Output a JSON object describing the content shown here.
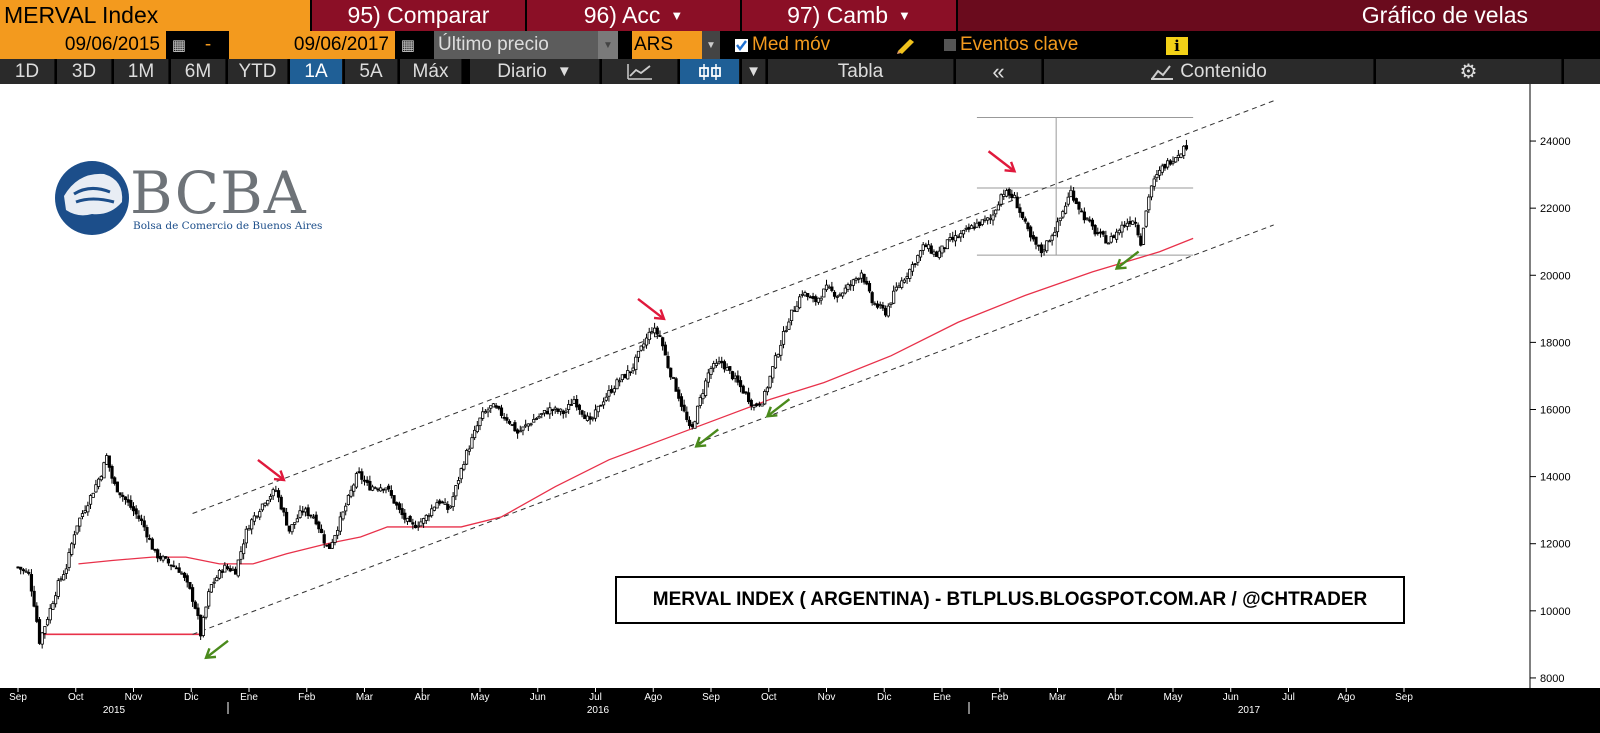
{
  "header": {
    "security": "MERVAL Index",
    "compare": "95) Comparar",
    "acc": "96) Acc",
    "camb": "97) Camb",
    "chart_title": "Gráfico de velas"
  },
  "controls": {
    "start_date": "09/06/2015",
    "dash": "-",
    "end_date": "09/06/2017",
    "price_field": "Último precio",
    "currency": "ARS",
    "moving_avg": "Med móv",
    "key_events": "Eventos clave",
    "info": "i"
  },
  "periods": [
    "1D",
    "3D",
    "1M",
    "6M",
    "YTD",
    "1A",
    "5A",
    "Máx"
  ],
  "active_period": "1A",
  "frequency": "Diario",
  "table_label": "Tabla",
  "content_label": "Contenido",
  "logo": {
    "text": "BCBA",
    "subtitle": "Bolsa de Comercio de Buenos Aires"
  },
  "annotation": "MERVAL INDEX ( ARGENTINA) - BTLPLUS.BLOGSPOT.COM.AR / @CHTRADER",
  "colors": {
    "orange": "#f39a1e",
    "red": "#8b0f26",
    "ma": "#e8314a",
    "up_arrow": "#4a8a1c",
    "down_arrow": "#e0193c"
  },
  "chart_data": {
    "type": "candlestick",
    "y_ticks": [
      8000,
      10000,
      12000,
      14000,
      16000,
      18000,
      20000,
      22000,
      24000
    ],
    "ylim": [
      7700,
      25700
    ],
    "x_months": [
      "Sep",
      "Oct",
      "Nov",
      "Dic",
      "Ene",
      "Feb",
      "Mar",
      "Abr",
      "May",
      "Jun",
      "Jul",
      "Ago",
      "Sep",
      "Oct",
      "Nov",
      "Dic",
      "Ene",
      "Feb",
      "Mar",
      "Abr",
      "May",
      "Jun",
      "Jul",
      "Ago",
      "Sep"
    ],
    "x_years": [
      "2015",
      "2016",
      "2017"
    ],
    "price_path": [
      [
        0,
        11300
      ],
      [
        0.8,
        11100
      ],
      [
        1.3,
        10000
      ],
      [
        1.6,
        9100
      ],
      [
        2.2,
        9800
      ],
      [
        3,
        10800
      ],
      [
        3.6,
        11300
      ],
      [
        4.3,
        12500
      ],
      [
        5.4,
        13400
      ],
      [
        6.2,
        14100
      ],
      [
        6.6,
        14600
      ],
      [
        7.1,
        13800
      ],
      [
        8.2,
        13200
      ],
      [
        9.3,
        12600
      ],
      [
        10.2,
        11700
      ],
      [
        11.3,
        11400
      ],
      [
        12.1,
        11200
      ],
      [
        12.8,
        10600
      ],
      [
        13.3,
        10000
      ],
      [
        13.6,
        9300
      ],
      [
        14.3,
        10700
      ],
      [
        15.3,
        11300
      ],
      [
        16.2,
        11200
      ],
      [
        17.1,
        12500
      ],
      [
        18.4,
        13300
      ],
      [
        19.2,
        13600
      ],
      [
        20.2,
        12400
      ],
      [
        21.2,
        13000
      ],
      [
        22.1,
        12800
      ],
      [
        23.1,
        11800
      ],
      [
        24.2,
        12900
      ],
      [
        25.3,
        14100
      ],
      [
        26.1,
        13700
      ],
      [
        27.4,
        13700
      ],
      [
        28.5,
        12900
      ],
      [
        29.3,
        12500
      ],
      [
        30.2,
        12700
      ],
      [
        31.3,
        13300
      ],
      [
        32.1,
        13000
      ],
      [
        33.3,
        14600
      ],
      [
        34.5,
        15800
      ],
      [
        35.3,
        16100
      ],
      [
        36.5,
        15700
      ],
      [
        37.2,
        15300
      ],
      [
        38.4,
        15700
      ],
      [
        39.6,
        16000
      ],
      [
        40.7,
        15900
      ],
      [
        41.4,
        16300
      ],
      [
        42.6,
        15600
      ],
      [
        43.6,
        16300
      ],
      [
        44.6,
        16800
      ],
      [
        45.7,
        17200
      ],
      [
        46.4,
        17800
      ],
      [
        47.2,
        18400
      ],
      [
        47.8,
        18200
      ],
      [
        48.4,
        17300
      ],
      [
        49.2,
        16400
      ],
      [
        50.1,
        15300
      ],
      [
        50.8,
        16300
      ],
      [
        51.5,
        17200
      ],
      [
        52.4,
        17400
      ],
      [
        53.2,
        17000
      ],
      [
        54.1,
        16500
      ],
      [
        54.8,
        16100
      ],
      [
        55.5,
        16300
      ],
      [
        56.4,
        17500
      ],
      [
        57.4,
        18700
      ],
      [
        58.4,
        19500
      ],
      [
        59.3,
        19200
      ],
      [
        60.2,
        19600
      ],
      [
        61.1,
        19400
      ],
      [
        62.2,
        19800
      ],
      [
        62.8,
        20100
      ],
      [
        63.6,
        19200
      ],
      [
        64.6,
        18900
      ],
      [
        65.4,
        19600
      ],
      [
        66.3,
        20100
      ],
      [
        67.5,
        20900
      ],
      [
        68.4,
        20600
      ],
      [
        69.3,
        21000
      ],
      [
        70.2,
        21200
      ],
      [
        71.3,
        21500
      ],
      [
        72.5,
        21700
      ],
      [
        73.3,
        22500
      ],
      [
        74.2,
        22300
      ],
      [
        75.4,
        21100
      ],
      [
        76.2,
        20700
      ],
      [
        77.4,
        21500
      ],
      [
        78.4,
        22500
      ],
      [
        79.3,
        21800
      ],
      [
        80.2,
        21300
      ],
      [
        81.2,
        21000
      ],
      [
        82.3,
        21500
      ],
      [
        83.1,
        21700
      ],
      [
        83.6,
        21000
      ],
      [
        84.3,
        22600
      ],
      [
        85.2,
        23200
      ],
      [
        86.3,
        23600
      ],
      [
        87.1,
        23900
      ]
    ],
    "moving_average": [
      [
        4.5,
        11400
      ],
      [
        7,
        11500
      ],
      [
        10,
        11600
      ],
      [
        12.5,
        11600
      ],
      [
        15,
        11400
      ],
      [
        17.5,
        11400
      ],
      [
        20,
        11700
      ],
      [
        23,
        12000
      ],
      [
        25.5,
        12200
      ],
      [
        27.5,
        12500
      ],
      [
        30,
        12500
      ],
      [
        33,
        12500
      ],
      [
        36,
        12800
      ],
      [
        40,
        13700
      ],
      [
        44,
        14500
      ],
      [
        48,
        15100
      ],
      [
        52,
        15700
      ],
      [
        56,
        16300
      ],
      [
        60,
        16800
      ],
      [
        65,
        17600
      ],
      [
        70,
        18600
      ],
      [
        75,
        19400
      ],
      [
        80,
        20100
      ],
      [
        85,
        20700
      ],
      [
        87.5,
        21100
      ]
    ],
    "support_line": [
      [
        13,
        9300
      ],
      [
        93.5,
        21500
      ]
    ],
    "resistance_line": [
      [
        13,
        12900
      ],
      [
        93.5,
        25200
      ]
    ],
    "horizontal_levels": [
      {
        "y": 9300,
        "x0": 1.6,
        "x1": 13.6,
        "color": "#e8314a"
      },
      {
        "y": 24700,
        "x0": 71.4,
        "x1": 87.5,
        "color": "#999999"
      },
      {
        "y": 22600,
        "x0": 71.4,
        "x1": 87.5,
        "color": "#999999"
      },
      {
        "y": 20600,
        "x0": 71.4,
        "x1": 87.5,
        "color": "#999999"
      }
    ],
    "vertical_line": {
      "x": 77.3,
      "y0": 20600,
      "y1": 24700
    },
    "resistance_arrows": [
      [
        19.8,
        13900
      ],
      [
        48.1,
        18700
      ],
      [
        74.2,
        23100
      ]
    ],
    "support_arrows": [
      [
        14.0,
        8600
      ],
      [
        50.5,
        14900
      ],
      [
        55.8,
        15800
      ],
      [
        81.8,
        20200
      ]
    ]
  }
}
